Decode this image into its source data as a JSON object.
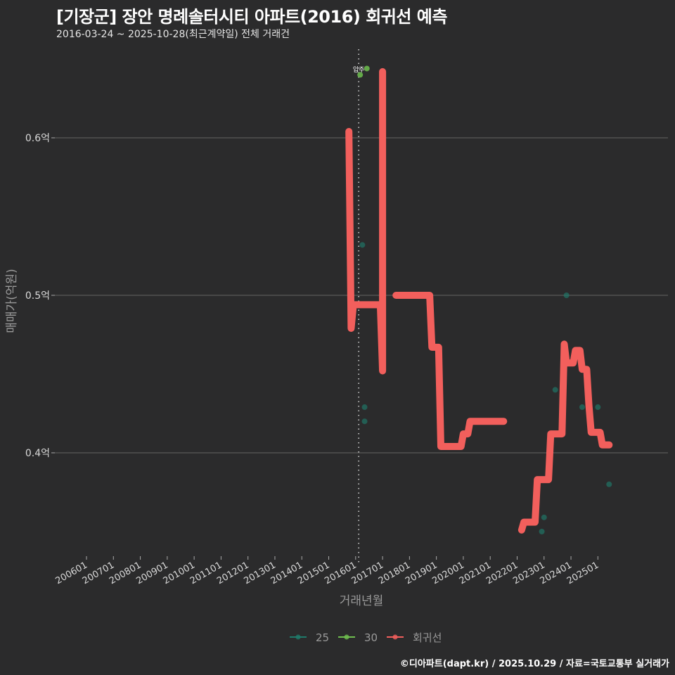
{
  "header": {
    "title": "[기장군] 장안 명례솔터시티 아파트(2016) 회귀선 예측",
    "subtitle": "2016-03-24 ~ 2025-10-28(최근계약일) 전체 거래건"
  },
  "footer": {
    "credit": "©디아파트(dapt.kr) / 2025.10.29 / 자료=국토교통부 실거래가"
  },
  "colors": {
    "background": "#2b2b2c",
    "s25": "#1f7a6a",
    "s30": "#6fbf4f",
    "regression": "#f25f5c",
    "grid": "#5a5a5a"
  },
  "chart_data": {
    "type": "line",
    "title": "[기장군] 장안 명례솔터시티 아파트(2016) 회귀선 예측",
    "subtitle": "2016-03-24 ~ 2025-10-28(최근계약일) 전체 거래건",
    "xlabel": "거래년월",
    "ylabel": "매매가(억원)",
    "x_ticks": [
      "200601",
      "200701",
      "200801",
      "200901",
      "201001",
      "201101",
      "201201",
      "201301",
      "201401",
      "201501",
      "201601",
      "201701",
      "201801",
      "201901",
      "202001",
      "202101",
      "202201",
      "202301",
      "202401",
      "202501"
    ],
    "y_ticks": [
      "0.4억",
      "0.5억",
      "0.6억"
    ],
    "y_tick_values": [
      0.4,
      0.5,
      0.6
    ],
    "ylim": [
      0.34,
      0.65
    ],
    "grid": true,
    "legend_position": "bottom",
    "legend": [
      "25",
      "30",
      "회귀선"
    ],
    "annotation": {
      "label": "입주",
      "x": "201603"
    },
    "series": [
      {
        "name": "25",
        "type": "scatter",
        "points": [
          {
            "x": "201604",
            "y": 0.532
          },
          {
            "x": "201605",
            "y": 0.429
          },
          {
            "x": "201605",
            "y": 0.42
          },
          {
            "x": "202212",
            "y": 0.35
          },
          {
            "x": "202301",
            "y": 0.359
          },
          {
            "x": "202306",
            "y": 0.44
          },
          {
            "x": "202311",
            "y": 0.5
          },
          {
            "x": "202406",
            "y": 0.429
          },
          {
            "x": "202501",
            "y": 0.429
          },
          {
            "x": "202506",
            "y": 0.38
          }
        ]
      },
      {
        "name": "30",
        "type": "scatter",
        "points": [
          {
            "x": "201603",
            "y": 0.64
          },
          {
            "x": "201606",
            "y": 0.644
          }
        ]
      },
      {
        "name": "회귀선",
        "type": "line",
        "segments": [
          [
            {
              "x": "201510",
              "y": 0.604
            },
            {
              "x": "201511",
              "y": 0.479
            },
            {
              "x": "201512",
              "y": 0.494
            },
            {
              "x": "201612",
              "y": 0.494
            },
            {
              "x": "201701",
              "y": 0.452
            },
            {
              "x": "201701",
              "y": 0.642
            }
          ],
          [
            {
              "x": "201707",
              "y": 0.5
            },
            {
              "x": "201810",
              "y": 0.5
            },
            {
              "x": "201811",
              "y": 0.467
            },
            {
              "x": "201902",
              "y": 0.467
            },
            {
              "x": "201903",
              "y": 0.404
            },
            {
              "x": "201912",
              "y": 0.404
            },
            {
              "x": "202001",
              "y": 0.412
            },
            {
              "x": "202003",
              "y": 0.412
            },
            {
              "x": "202004",
              "y": 0.42
            },
            {
              "x": "202107",
              "y": 0.42
            }
          ],
          [
            {
              "x": "202203",
              "y": 0.351
            },
            {
              "x": "202204",
              "y": 0.356
            },
            {
              "x": "202209",
              "y": 0.356
            },
            {
              "x": "202210",
              "y": 0.383
            },
            {
              "x": "202303",
              "y": 0.383
            },
            {
              "x": "202304",
              "y": 0.412
            },
            {
              "x": "202309",
              "y": 0.412
            },
            {
              "x": "202310",
              "y": 0.469
            },
            {
              "x": "202311",
              "y": 0.457
            },
            {
              "x": "202402",
              "y": 0.457
            },
            {
              "x": "202403",
              "y": 0.465
            },
            {
              "x": "202405",
              "y": 0.465
            },
            {
              "x": "202406",
              "y": 0.453
            },
            {
              "x": "202408",
              "y": 0.453
            },
            {
              "x": "202409",
              "y": 0.43
            },
            {
              "x": "202410",
              "y": 0.413
            },
            {
              "x": "202502",
              "y": 0.413
            },
            {
              "x": "202503",
              "y": 0.405
            },
            {
              "x": "202506",
              "y": 0.405
            }
          ]
        ]
      }
    ]
  }
}
